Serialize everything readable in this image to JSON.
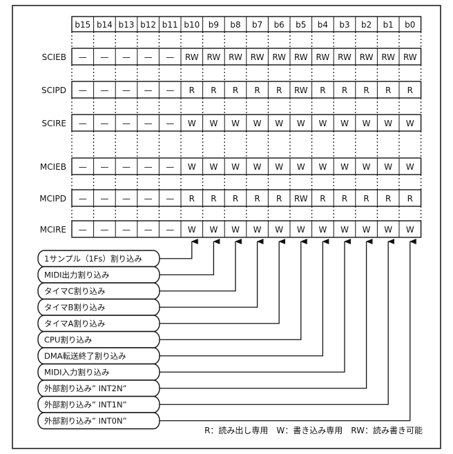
{
  "bit_headers": [
    "b15",
    "b14",
    "b13",
    "b12",
    "b11",
    "b10",
    "b9",
    "b8",
    "b7",
    "b6",
    "b5",
    "b4",
    "b3",
    "b2",
    "b1",
    "b0"
  ],
  "registers": [
    {
      "name": "SCIEB",
      "bits": [
        "—",
        "—",
        "—",
        "—",
        "—",
        "RW",
        "RW",
        "RW",
        "RW",
        "RW",
        "RW",
        "RW",
        "RW",
        "RW",
        "RW",
        "RW"
      ]
    },
    {
      "name": "SCIPD",
      "bits": [
        "—",
        "—",
        "—",
        "—",
        "—",
        "R",
        "R",
        "R",
        "R",
        "R",
        "RW",
        "R",
        "R",
        "R",
        "R",
        "R"
      ]
    },
    {
      "name": "SCIRE",
      "bits": [
        "—",
        "—",
        "—",
        "—",
        "—",
        "W",
        "W",
        "W",
        "W",
        "W",
        "W",
        "W",
        "W",
        "W",
        "W",
        "W"
      ]
    },
    {
      "name": "MCIEB",
      "bits": [
        "—",
        "—",
        "—",
        "—",
        "—",
        "W",
        "W",
        "W",
        "W",
        "W",
        "W",
        "W",
        "W",
        "W",
        "W",
        "W"
      ]
    },
    {
      "name": "MCIPD",
      "bits": [
        "—",
        "—",
        "—",
        "—",
        "—",
        "R",
        "R",
        "R",
        "R",
        "R",
        "RW",
        "R",
        "R",
        "R",
        "R",
        "R"
      ]
    },
    {
      "name": "MCIRE",
      "bits": [
        "—",
        "—",
        "—",
        "—",
        "—",
        "W",
        "W",
        "W",
        "W",
        "W",
        "W",
        "W",
        "W",
        "W",
        "W",
        "W"
      ]
    }
  ],
  "interrupt_sources": [
    {
      "label": "1サンプル（1Fs）割り込み",
      "bit": "b10"
    },
    {
      "label": "MIDI出力割り込み",
      "bit": "b9"
    },
    {
      "label": "タイマC割り込み",
      "bit": "b8"
    },
    {
      "label": "タイマB割り込み",
      "bit": "b7"
    },
    {
      "label": "タイマA割り込み",
      "bit": "b6"
    },
    {
      "label": "CPU割り込み",
      "bit": "b5"
    },
    {
      "label": "DMA転送終了割り込み",
      "bit": "b4"
    },
    {
      "label": "MIDI入力割り込み",
      "bit": "b3"
    },
    {
      "label": "外部割り込み” INT2N”",
      "bit": "b2"
    },
    {
      "label": "外部割り込み” INT1N”",
      "bit": "b1"
    },
    {
      "label": "外部割り込み” INT0N”",
      "bit": "b0"
    }
  ],
  "legend": "R：読み出し専用　W：書き込み専用　RW：読み書き可能"
}
